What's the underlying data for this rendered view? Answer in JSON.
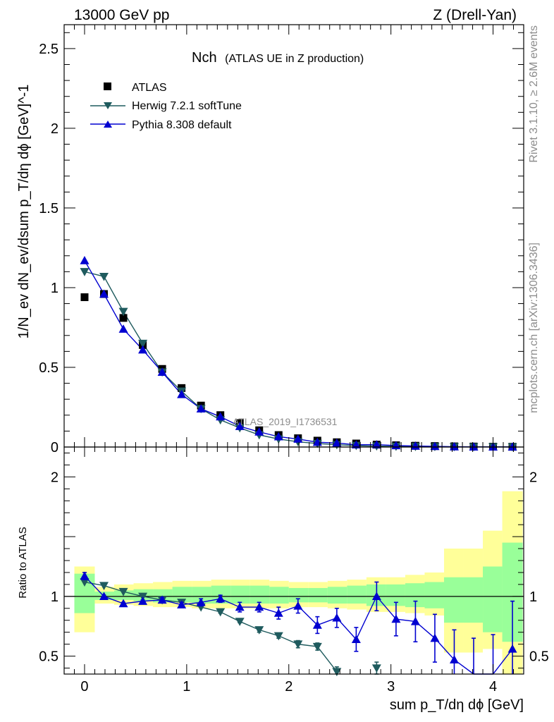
{
  "header": {
    "left": "13000 GeV pp",
    "right": "Z (Drell-Yan)"
  },
  "side_labels": {
    "rivet": "Rivet 3.1.10, ≥ 2.6M events",
    "mcplots": "mcplots.cern.ch [arXiv:1306.3436]"
  },
  "chart_data": {
    "type": "scatter",
    "title_main": "Nch",
    "title_sub": "(ATLAS UE in Z production)",
    "analysis_id": "ATLAS_2019_I1736531",
    "xlabel": "sum p_T/dη dϕ [GeV]",
    "ylabel": "1/N_ev dN_ev/dsum p_T/dη dϕ [GeV]^-1",
    "ratio_ylabel": "Ratio to ATLAS",
    "xlim": [
      -0.2,
      4.3
    ],
    "ylim": [
      0,
      2.65
    ],
    "ratio_ylim": [
      0.35,
      2.25
    ],
    "x_ticks": [
      "0",
      "1",
      "2",
      "3",
      "4"
    ],
    "y_ticks": [
      "0",
      "0.5",
      "1",
      "1.5",
      "2",
      "2.5"
    ],
    "ratio_y_ticks": [
      "0.5",
      "1",
      "2"
    ],
    "x": [
      0.0,
      0.19,
      0.38,
      0.57,
      0.76,
      0.95,
      1.14,
      1.33,
      1.52,
      1.71,
      1.9,
      2.09,
      2.28,
      2.47,
      2.66,
      2.86,
      3.05,
      3.24,
      3.43,
      3.62,
      3.81,
      4.0,
      4.19
    ],
    "bin_edges": [
      -0.1,
      0.1,
      0.29,
      0.48,
      0.67,
      0.86,
      1.05,
      1.24,
      1.43,
      1.62,
      1.81,
      2.0,
      2.19,
      2.38,
      2.57,
      2.76,
      2.95,
      3.14,
      3.33,
      3.52,
      3.71,
      3.9,
      4.09,
      4.29
    ],
    "series": [
      {
        "name": "ATLAS",
        "color": "#000000",
        "marker": "square",
        "values": [
          0.94,
          0.96,
          0.81,
          0.64,
          0.49,
          0.37,
          0.26,
          0.2,
          0.15,
          0.105,
          0.075,
          0.055,
          0.04,
          0.03,
          0.022,
          0.015,
          0.011,
          0.008,
          0.006,
          0.004,
          0.003,
          0.002,
          0.0015
        ]
      },
      {
        "name": "Herwig 7.2.1 softTune",
        "color": "#1f5b5e",
        "marker": "triangle-down",
        "values": [
          1.1,
          1.07,
          0.85,
          0.65,
          0.47,
          0.35,
          0.24,
          0.17,
          0.12,
          0.076,
          0.05,
          0.033,
          0.022,
          0.014,
          0.009,
          0.006,
          0.004,
          0.003,
          0.002,
          0.0015,
          0.001,
          0.0008,
          0.0006
        ],
        "ratio": [
          1.12,
          1.09,
          1.04,
          1.0,
          0.97,
          0.95,
          0.91,
          0.87,
          0.79,
          0.72,
          0.67,
          0.6,
          0.58,
          0.37,
          null,
          0.4,
          null,
          null,
          null,
          null,
          null,
          null,
          null
        ],
        "ratio_err": [
          0,
          0,
          0,
          0,
          0,
          0,
          0,
          0.01,
          0.01,
          0.02,
          0.02,
          0.03,
          0.03,
          0.04,
          null,
          0.05,
          null,
          null,
          null,
          null,
          null,
          null,
          null
        ]
      },
      {
        "name": "Pythia 8.308 default",
        "color": "#0000d0",
        "marker": "triangle-up",
        "values": [
          1.17,
          0.96,
          0.74,
          0.61,
          0.47,
          0.33,
          0.24,
          0.19,
          0.13,
          0.095,
          0.065,
          0.05,
          0.03,
          0.025,
          0.014,
          0.015,
          0.009,
          0.0065,
          0.004,
          0.002,
          0.001,
          0.0007,
          0.0008
        ],
        "ratio": [
          1.17,
          1.0,
          0.94,
          0.96,
          0.97,
          0.93,
          0.95,
          0.98,
          0.91,
          0.91,
          0.86,
          0.92,
          0.76,
          0.82,
          0.64,
          1.0,
          0.81,
          0.79,
          0.65,
          0.47,
          0.3,
          0.33,
          0.56
        ],
        "ratio_err": [
          0.03,
          0.01,
          0.01,
          0.01,
          0.02,
          0.02,
          0.03,
          0.03,
          0.04,
          0.04,
          0.05,
          0.06,
          0.07,
          0.08,
          0.1,
          0.12,
          0.14,
          0.17,
          0.2,
          0.25,
          0.35,
          0.35,
          0.4
        ]
      }
    ],
    "ratio_band_inner": [
      [
        0.86,
        1.19
      ],
      [
        0.97,
        1.04
      ],
      [
        0.97,
        1.05
      ],
      [
        0.96,
        1.06
      ],
      [
        0.95,
        1.06
      ],
      [
        0.95,
        1.08
      ],
      [
        0.94,
        1.08
      ],
      [
        0.94,
        1.09
      ],
      [
        0.94,
        1.09
      ],
      [
        0.94,
        1.09
      ],
      [
        0.94,
        1.08
      ],
      [
        0.95,
        1.07
      ],
      [
        0.95,
        1.07
      ],
      [
        0.94,
        1.08
      ],
      [
        0.94,
        1.09
      ],
      [
        0.92,
        1.1
      ],
      [
        0.92,
        1.1
      ],
      [
        0.91,
        1.11
      ],
      [
        0.9,
        1.12
      ],
      [
        0.78,
        1.16
      ],
      [
        0.78,
        1.16
      ],
      [
        0.7,
        1.25
      ],
      [
        0.62,
        1.45
      ]
    ],
    "ratio_band_outer": [
      [
        0.7,
        1.25
      ],
      [
        0.94,
        1.08
      ],
      [
        0.93,
        1.1
      ],
      [
        0.92,
        1.11
      ],
      [
        0.91,
        1.12
      ],
      [
        0.91,
        1.13
      ],
      [
        0.9,
        1.13
      ],
      [
        0.9,
        1.14
      ],
      [
        0.9,
        1.14
      ],
      [
        0.9,
        1.14
      ],
      [
        0.9,
        1.13
      ],
      [
        0.91,
        1.12
      ],
      [
        0.91,
        1.12
      ],
      [
        0.9,
        1.13
      ],
      [
        0.89,
        1.14
      ],
      [
        0.87,
        1.16
      ],
      [
        0.87,
        1.16
      ],
      [
        0.86,
        1.18
      ],
      [
        0.84,
        1.2
      ],
      [
        0.53,
        1.4
      ],
      [
        0.53,
        1.4
      ],
      [
        0.56,
        1.55
      ],
      [
        0.34,
        1.88
      ]
    ]
  }
}
